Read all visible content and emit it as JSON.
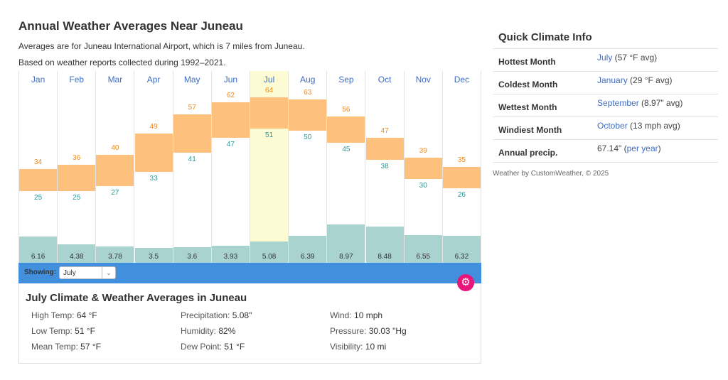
{
  "header": {
    "title": "Annual Weather Averages Near Juneau",
    "line1": "Averages are for Juneau International Airport, which is 7 miles from Juneau.",
    "line2": "Based on weather reports collected during 1992–2021."
  },
  "chart_data": {
    "type": "bar",
    "categories": [
      "Jan",
      "Feb",
      "Mar",
      "Apr",
      "May",
      "Jun",
      "Jul",
      "Aug",
      "Sep",
      "Oct",
      "Nov",
      "Dec"
    ],
    "series": [
      {
        "name": "High Temp",
        "unit": "°F",
        "values": [
          34,
          36,
          40,
          49,
          57,
          62,
          64,
          63,
          56,
          47,
          39,
          35
        ]
      },
      {
        "name": "Low Temp",
        "unit": "°F",
        "values": [
          25,
          25,
          27,
          33,
          41,
          47,
          51,
          50,
          45,
          38,
          30,
          26
        ]
      },
      {
        "name": "Precipitation",
        "unit": "in",
        "values_text": [
          "6.16",
          "4.38",
          "3.78",
          "3.5",
          "3.6",
          "3.93",
          "5.08",
          "6.39",
          "8.97",
          "8.48",
          "6.55",
          "6.32"
        ]
      }
    ],
    "selected": "Jul",
    "colors": {
      "temp_bar": "#fdc17d",
      "high_label": "#f08a1c",
      "low_label": "#2a9a9a",
      "precip_bar": "#a8d3cf",
      "selected_bg": "#fdfbd3"
    }
  },
  "showing": {
    "label": "Showing:",
    "value": "July"
  },
  "detail": {
    "title": "July Climate & Weather Averages in Juneau",
    "items": [
      {
        "k": "High Temp:",
        "v": "64 °F"
      },
      {
        "k": "Low Temp:",
        "v": "51 °F"
      },
      {
        "k": "Mean Temp:",
        "v": "57 °F"
      },
      {
        "k": "Precipitation:",
        "v": "5.08\""
      },
      {
        "k": "Humidity:",
        "v": "82%"
      },
      {
        "k": "Dew Point:",
        "v": "51 °F"
      },
      {
        "k": "Wind:",
        "v": "10 mph"
      },
      {
        "k": "Pressure:",
        "v": "30.03 \"Hg"
      },
      {
        "k": "Visibility:",
        "v": "10 mi"
      }
    ]
  },
  "quick": {
    "title": "Quick Climate Info",
    "rows": [
      {
        "k": "Hottest Month",
        "link": "July",
        "rest": " (57 °F avg)"
      },
      {
        "k": "Coldest Month",
        "link": "January",
        "rest": " (29 °F avg)"
      },
      {
        "k": "Wettest Month",
        "link": "September",
        "rest": " (8.97\" avg)"
      },
      {
        "k": "Windiest Month",
        "link": "October",
        "rest": " (13 mph avg)"
      },
      {
        "k": "Annual precip.",
        "pre": "67.14\" (",
        "link": "per year",
        "rest": ")"
      }
    ],
    "credit": "Weather by CustomWeather, © 2025"
  }
}
